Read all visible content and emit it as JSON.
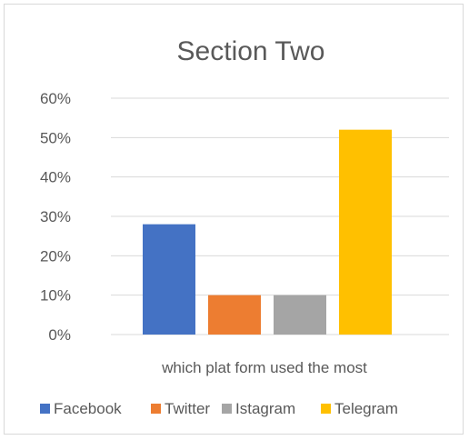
{
  "chart_data": {
    "type": "bar",
    "title": "Section Two",
    "xlabel": "which plat form used the most",
    "ylabel": "",
    "categories": [
      "Facebook",
      "Twitter",
      "Istagram",
      "Telegram"
    ],
    "values": [
      0.28,
      0.1,
      0.1,
      0.52
    ],
    "colors": [
      "#4472c4",
      "#ed7d31",
      "#a5a5a5",
      "#ffc000"
    ],
    "ylim": [
      0,
      0.6
    ],
    "yticks": [
      "0%",
      "10%",
      "20%",
      "30%",
      "40%",
      "50%",
      "60%"
    ],
    "grid": true,
    "legend_position": "bottom"
  }
}
